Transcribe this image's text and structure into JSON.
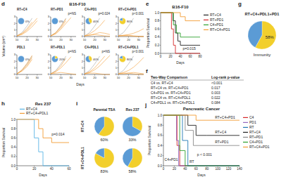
{
  "chart_data": [
    {
      "type": "small_multiples",
      "panel": "d",
      "title": "B16-F10",
      "x_label": "Days",
      "y_label": "Volume (cm³)",
      "x": [
        10,
        15,
        20,
        25,
        30,
        35
      ],
      "xlim": [
        10,
        35
      ],
      "ylim": [
        0,
        3
      ],
      "xticks": [
        10,
        20,
        30
      ],
      "yticks": [
        0,
        1,
        2,
        3
      ],
      "charts": [
        {
          "title": "RT+C4",
          "pie": {
            "values": [
              0,
              100
            ],
            "value_labels": [
              "0%",
              null
            ],
            "colors": [
              "#f2cf2c",
              "#5b9bd5"
            ]
          },
          "series": [
            {
              "color": "#a6a6a6",
              "values": [
                0.1,
                0.6,
                1.6,
                2.8,
                null,
                null
              ]
            },
            {
              "color": "#f39c34",
              "values": [
                0.1,
                0.4,
                1.0,
                1.9,
                2.8,
                null
              ]
            },
            {
              "color": "#f39c34",
              "values": [
                0.1,
                0.3,
                0.8,
                1.5,
                2.4,
                null
              ]
            },
            {
              "color": "#f39c34",
              "values": [
                0.1,
                0.5,
                1.2,
                2.2,
                null,
                null
              ]
            }
          ]
        },
        {
          "title": "RT+PD1",
          "annotation": "p=NS",
          "pie": {
            "values": [
              0,
              100
            ],
            "value_labels": [
              "0%",
              null
            ],
            "colors": [
              "#f2cf2c",
              "#5b9bd5"
            ]
          },
          "series": [
            {
              "color": "#a6a6a6",
              "values": [
                0.1,
                0.6,
                1.6,
                2.8,
                null,
                null
              ]
            },
            {
              "color": "#f39c34",
              "values": [
                0.1,
                0.5,
                1.3,
                2.4,
                null,
                null
              ]
            },
            {
              "color": "#f39c34",
              "values": [
                0.1,
                0.4,
                1.1,
                2.0,
                2.9,
                null
              ]
            },
            {
              "color": "#f39c34",
              "values": [
                0.1,
                0.6,
                1.5,
                2.7,
                null,
                null
              ]
            }
          ]
        },
        {
          "title": "C4+PD1",
          "annotation": "p=0.024",
          "pie": {
            "values": [
              40,
              60
            ],
            "value_labels": [
              "40%",
              null
            ],
            "colors": [
              "#f2cf2c",
              "#5b9bd5"
            ]
          },
          "series": [
            {
              "color": "#a6a6a6",
              "values": [
                0.1,
                0.6,
                1.6,
                2.8,
                null,
                null
              ]
            },
            {
              "color": "#f39c34",
              "values": [
                0.1,
                0.2,
                0.3,
                0.2,
                0.1,
                0.05
              ]
            },
            {
              "color": "#f39c34",
              "values": [
                0.1,
                0.4,
                0.9,
                1.6,
                2.5,
                null
              ]
            },
            {
              "color": "#f39c34",
              "values": [
                0.1,
                0.2,
                0.4,
                0.6,
                0.5,
                0.3
              ]
            }
          ]
        },
        {
          "title": "RT+C4+PD1",
          "annotation": "p<0.001",
          "pie": {
            "values": [
              80,
              20
            ],
            "value_labels": [
              "80%",
              null
            ],
            "colors": [
              "#f2cf2c",
              "#5b9bd5"
            ]
          },
          "series": [
            {
              "color": "#a6a6a6",
              "values": [
                0.1,
                0.6,
                1.6,
                2.8,
                null,
                null
              ]
            },
            {
              "color": "#f39c34",
              "values": [
                0.1,
                0.15,
                0.2,
                0.1,
                0.05,
                0
              ]
            },
            {
              "color": "#f39c34",
              "values": [
                0.1,
                0.2,
                0.3,
                0.5,
                0.8,
                1.2
              ]
            },
            {
              "color": "#f39c34",
              "values": [
                0.1,
                0.1,
                0.1,
                0.05,
                0,
                0
              ]
            }
          ]
        },
        {
          "title": "PDL1",
          "pie": {
            "values": [
              0,
              100
            ],
            "value_labels": [
              "0%",
              null
            ],
            "colors": [
              "#f2cf2c",
              "#5b9bd5"
            ]
          },
          "series": [
            {
              "color": "#a6a6a6",
              "values": [
                0.1,
                0.6,
                1.6,
                2.8,
                null,
                null
              ]
            },
            {
              "color": "#f39c34",
              "values": [
                0.1,
                0.6,
                1.4,
                2.6,
                null,
                null
              ]
            },
            {
              "color": "#f39c34",
              "values": [
                0.1,
                0.5,
                1.2,
                2.3,
                null,
                null
              ]
            },
            {
              "color": "#f39c34",
              "values": [
                0.1,
                0.7,
                1.7,
                2.9,
                null,
                null
              ]
            }
          ]
        },
        {
          "title": "RT+PDL1",
          "annotation": "p=NS",
          "pie": {
            "values": [
              20,
              80
            ],
            "value_labels": [
              "20%",
              null
            ],
            "colors": [
              "#f2cf2c",
              "#5b9bd5"
            ]
          },
          "series": [
            {
              "color": "#a6a6a6",
              "values": [
                0.1,
                0.6,
                1.6,
                2.8,
                null,
                null
              ]
            },
            {
              "color": "#f39c34",
              "values": [
                0.1,
                0.4,
                1.0,
                1.8,
                2.7,
                null
              ]
            },
            {
              "color": "#f39c34",
              "values": [
                0.1,
                0.2,
                0.3,
                0.2,
                0.1,
                0
              ]
            },
            {
              "color": "#f39c34",
              "values": [
                0.1,
                0.5,
                1.3,
                2.5,
                null,
                null
              ]
            }
          ]
        },
        {
          "title": "C4+PDL1",
          "annotation": "p=NS",
          "pie": {
            "values": [
              40,
              60
            ],
            "value_labels": [
              "40%",
              null
            ],
            "colors": [
              "#f2cf2c",
              "#5b9bd5"
            ]
          },
          "series": [
            {
              "color": "#a6a6a6",
              "values": [
                0.1,
                0.6,
                1.6,
                2.8,
                null,
                null
              ]
            },
            {
              "color": "#f39c34",
              "values": [
                0.1,
                0.3,
                0.7,
                1.3,
                2.1,
                2.9
              ]
            },
            {
              "color": "#f39c34",
              "values": [
                0.1,
                0.2,
                0.2,
                0.1,
                0,
                0
              ]
            },
            {
              "color": "#f39c34",
              "values": [
                0.1,
                0.4,
                1.0,
                1.9,
                2.8,
                null
              ]
            }
          ]
        },
        {
          "title": "RT+C4+PDL1",
          "annotation": "p<0.001",
          "pie": {
            "values": [
              80,
              20
            ],
            "value_labels": [
              "80%",
              null
            ],
            "colors": [
              "#f2cf2c",
              "#5b9bd5"
            ]
          },
          "series": [
            {
              "color": "#a6a6a6",
              "values": [
                0.1,
                0.6,
                1.6,
                2.8,
                null,
                null
              ]
            },
            {
              "color": "#f39c34",
              "values": [
                0.1,
                0.1,
                0.2,
                0.1,
                0,
                0
              ]
            },
            {
              "color": "#f39c34",
              "values": [
                0.1,
                0.2,
                0.2,
                0.3,
                0.2,
                0.1
              ]
            },
            {
              "color": "#f39c34",
              "values": [
                0.1,
                0.3,
                0.6,
                1.1,
                1.8,
                2.6
              ]
            }
          ]
        }
      ]
    },
    {
      "type": "line",
      "panel": "e",
      "title": "B16-F10",
      "x_label": "Days",
      "y_label": "Proportion Survival",
      "line_style": "step",
      "legend": "right",
      "xlim": [
        0,
        80
      ],
      "xticks": [
        0,
        20,
        40,
        60,
        80
      ],
      "ylim": [
        0,
        1
      ],
      "yticks": [
        {
          "value": 0,
          "label": "0.0"
        },
        0.2,
        0.4,
        0.6,
        0.8,
        {
          "value": 1,
          "label": "1.0"
        }
      ],
      "series": [
        {
          "name": "RT+C4",
          "color": "#222222",
          "x": [
            0,
            20,
            25,
            30,
            35,
            40,
            80
          ],
          "values": [
            1,
            1,
            0.8,
            0.5,
            0.3,
            0.2,
            0.2
          ]
        },
        {
          "name": "RT+PD1",
          "color": "#d62728",
          "x": [
            0,
            18,
            22,
            26,
            30,
            80
          ],
          "values": [
            1,
            1,
            0.6,
            0.2,
            0,
            0
          ]
        },
        {
          "name": "C4+PD1",
          "color": "#2ca02c",
          "x": [
            0,
            20,
            26,
            32,
            40,
            80
          ],
          "values": [
            1,
            1,
            0.7,
            0.5,
            0.4,
            0.4
          ]
        },
        {
          "name": "RT+C4+PD1",
          "color": "#f39c34",
          "x": [
            0,
            30,
            40,
            50,
            80
          ],
          "values": [
            1,
            1,
            0.9,
            0.8,
            0.8
          ]
        }
      ],
      "annotations": [
        {
          "text": "p=0.015",
          "x": 45,
          "y": 0.08
        }
      ]
    },
    {
      "type": "table",
      "panel": "f",
      "columns": [
        "Two-Way Comparison",
        "Log-rank p-value"
      ],
      "rows": [
        [
          "C4 vs. RT+C4",
          "<0.001"
        ],
        [
          "RT+C4 vs. RT+C4+PD1",
          "0.017"
        ],
        [
          "C4+PD1 vs. RT+C4+PD1",
          "0.003"
        ],
        [
          "RT+C4 vs. RT+C4+PDL1",
          "0.022"
        ],
        [
          "C4+PDL1 vs. RT+C4+PDL1",
          "0.084"
        ]
      ]
    },
    {
      "type": "pie",
      "panel": "g",
      "title": "RT+C4+PDL1+PD1",
      "categories": [
        "Immunity",
        null
      ],
      "values": [
        58,
        42
      ],
      "value_labels": [
        "58%",
        null
      ],
      "colors": [
        "#f2cf2c",
        "#5b9bd5"
      ]
    },
    {
      "type": "line",
      "panel": "h",
      "title": "Res 237",
      "x_label": "Days",
      "y_label": "Proportion Survival",
      "line_style": "step",
      "legend": "top",
      "xlim": [
        0,
        60
      ],
      "xticks": [
        0,
        20,
        40,
        60
      ],
      "ylim": [
        0,
        1
      ],
      "yticks": [
        {
          "value": 0,
          "label": "0.0"
        },
        0.2,
        0.4,
        0.6,
        0.8,
        {
          "value": 1,
          "label": "1.0"
        }
      ],
      "series": [
        {
          "name": "RT+C4",
          "color": "#5ab4e5",
          "x": [
            0,
            15,
            20,
            25,
            30,
            60
          ],
          "values": [
            1,
            1,
            0.6,
            0.3,
            0,
            0
          ]
        },
        {
          "name": "RT+C4+PDL1",
          "color": "#f39c34",
          "x": [
            0,
            20,
            25,
            30,
            40,
            60
          ],
          "values": [
            1,
            1,
            0.8,
            0.6,
            0.5,
            0.5
          ]
        }
      ],
      "annotations": [
        {
          "text": "p=0.014",
          "x": 40,
          "y": 0.65
        }
      ]
    },
    {
      "type": "pie_grid",
      "panel": "i",
      "columns": [
        "Parental TSA",
        "Res 237"
      ],
      "rows": [
        "RT+C4",
        "RT+C4+PDL1"
      ],
      "colors": [
        "#f2cf2c",
        "#5b9bd5"
      ],
      "cells": [
        [
          {
            "values": [
              60,
              40
            ],
            "value_labels": [
              "60%",
              null
            ]
          },
          {
            "values": [
              33,
              67
            ],
            "value_labels": [
              "33%",
              null
            ]
          }
        ],
        [
          {
            "values": [
              83,
              17
            ],
            "value_labels": [
              "83%",
              null
            ]
          },
          {
            "values": [
              58,
              42
            ],
            "value_labels": [
              "58%",
              null
            ]
          }
        ]
      ]
    },
    {
      "type": "line",
      "panel": "j",
      "title": "Pancreatic Cancer",
      "x_label": "Days",
      "y_label": "Proportion Survival",
      "line_style": "step",
      "legend": "right",
      "xlim": [
        0,
        140
      ],
      "xticks": [
        0,
        20,
        40,
        60,
        80,
        100,
        120,
        140
      ],
      "ylim": [
        0,
        1
      ],
      "yticks": [
        {
          "value": 0,
          "label": "0.0"
        },
        0.2,
        0.4,
        0.6,
        0.8,
        {
          "value": 1,
          "label": "1.0"
        }
      ],
      "series": [
        {
          "name": "C4",
          "color": "#d62728",
          "x": [
            0,
            20,
            25,
            30,
            140
          ],
          "values": [
            1,
            1,
            0.4,
            0,
            0
          ]
        },
        {
          "name": "PD1",
          "color": "#9467bd",
          "x": [
            0,
            18,
            24,
            28,
            140
          ],
          "values": [
            1,
            1,
            0.5,
            0,
            0
          ]
        },
        {
          "name": "RT",
          "color": "#1f77b4",
          "x": [
            0,
            25,
            35,
            45,
            140
          ],
          "values": [
            1,
            1,
            0.5,
            0,
            0
          ]
        },
        {
          "name": "RT+C4",
          "color": "#222222",
          "x": [
            0,
            30,
            45,
            60,
            80,
            140
          ],
          "values": [
            1,
            1,
            0.8,
            0.6,
            0.6,
            0.6
          ]
        },
        {
          "name": "RT+PD1",
          "color": "#8c8c8c",
          "x": [
            0,
            30,
            40,
            55,
            140
          ],
          "values": [
            1,
            1,
            0.7,
            0.4,
            0.4
          ]
        },
        {
          "name": "C4+PD1",
          "color": "#2ca02c",
          "x": [
            0,
            22,
            30,
            40,
            140
          ],
          "values": [
            1,
            1,
            0.3,
            0,
            0
          ]
        },
        {
          "name": "RT+C4+PD1",
          "color": "#f39c34",
          "x": [
            0,
            40,
            60,
            140
          ],
          "values": [
            1,
            1,
            0.9,
            0.9
          ]
        }
      ],
      "annotations": [
        {
          "text": "RT+C4+PD1",
          "x": 95,
          "y": 0.93
        },
        {
          "text": "RT+C4",
          "x": 95,
          "y": 0.64
        },
        {
          "text": "RT+PD1",
          "x": 95,
          "y": 0.44
        },
        {
          "text": "p < 0.001",
          "x": 62,
          "y": 0.2
        },
        {
          "text": "RT",
          "x": 48,
          "y": 0.05
        },
        {
          "text": "C4+PD1",
          "x": 2,
          "y": 0.1
        }
      ]
    }
  ]
}
